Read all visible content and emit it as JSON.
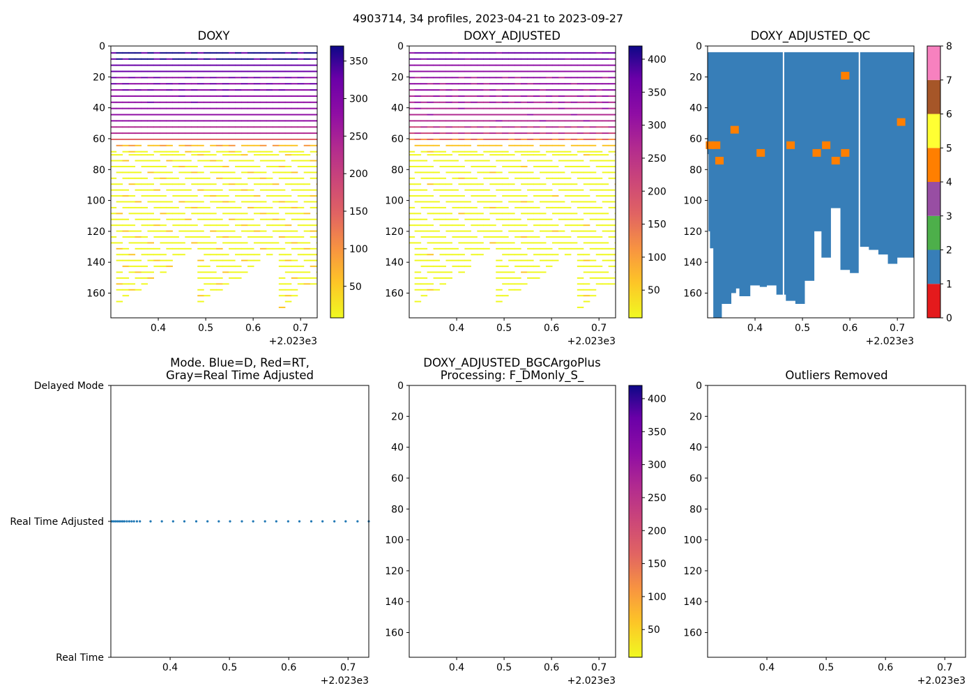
{
  "figure": {
    "suptitle": "4903714, 34 profiles, 2023-04-21 to 2023-09-27"
  },
  "colors": {
    "qc_good": "#377eb8",
    "qc_bad": "#ff7f00",
    "mode_points": "#1f77b4",
    "qc_scale": [
      "#e41a1c",
      "#377eb8",
      "#4daf4a",
      "#984ea3",
      "#ff7f00",
      "#ffff33",
      "#a65628",
      "#f781bf",
      "#999999"
    ]
  },
  "chart_data": [
    {
      "id": "doxy",
      "type": "heatmap",
      "title": "DOXY",
      "xlim": [
        2023.3,
        2023.735
      ],
      "ylim": [
        176,
        0
      ],
      "xticks": [
        "0.4",
        "0.5",
        "0.6",
        "0.7"
      ],
      "xtick_values": [
        2023.4,
        2023.5,
        2023.6,
        2023.7
      ],
      "x_offset_label": "+2.023e3",
      "yticks": [
        "0",
        "20",
        "40",
        "60",
        "80",
        "100",
        "120",
        "140",
        "160"
      ],
      "ytick_values": [
        0,
        20,
        40,
        60,
        80,
        100,
        120,
        140,
        160
      ],
      "colorbar": {
        "range": [
          8,
          370
        ],
        "ticks": [
          "50",
          "100",
          "150",
          "200",
          "250",
          "300",
          "350"
        ],
        "tick_values": [
          50,
          100,
          150,
          200,
          250,
          300,
          350
        ],
        "colormap": "plasma_r"
      },
      "profile_time_range": [
        2023.305,
        2023.74
      ],
      "n_profiles": 34
    },
    {
      "id": "doxy_adjusted",
      "type": "heatmap",
      "title": "DOXY_ADJUSTED",
      "xlim": [
        2023.3,
        2023.735
      ],
      "ylim": [
        176,
        0
      ],
      "xticks": [
        "0.4",
        "0.5",
        "0.6",
        "0.7"
      ],
      "xtick_values": [
        2023.4,
        2023.5,
        2023.6,
        2023.7
      ],
      "x_offset_label": "+2.023e3",
      "yticks": [
        "0",
        "20",
        "40",
        "60",
        "80",
        "100",
        "120",
        "140",
        "160"
      ],
      "ytick_values": [
        0,
        20,
        40,
        60,
        80,
        100,
        120,
        140,
        160
      ],
      "colorbar": {
        "range": [
          8,
          420
        ],
        "ticks": [
          "50",
          "100",
          "150",
          "200",
          "250",
          "300",
          "350",
          "400"
        ],
        "tick_values": [
          50,
          100,
          150,
          200,
          250,
          300,
          350,
          400
        ],
        "colormap": "plasma_r"
      },
      "profile_time_range": [
        2023.305,
        2023.74
      ],
      "n_profiles": 34
    },
    {
      "id": "doxy_adjusted_qc",
      "type": "heatmap",
      "title": "DOXY_ADJUSTED_QC",
      "xlim": [
        2023.3,
        2023.735
      ],
      "ylim": [
        176,
        0
      ],
      "xticks": [
        "0.4",
        "0.5",
        "0.6",
        "0.7"
      ],
      "xtick_values": [
        2023.4,
        2023.5,
        2023.6,
        2023.7
      ],
      "x_offset_label": "+2.023e3",
      "yticks": [
        "0",
        "20",
        "40",
        "60",
        "80",
        "100",
        "120",
        "140",
        "160"
      ],
      "ytick_values": [
        0,
        20,
        40,
        60,
        80,
        100,
        120,
        140,
        160
      ],
      "colorbar": {
        "range": [
          0,
          8
        ],
        "ticks": [
          "0",
          "1",
          "2",
          "3",
          "4",
          "5",
          "6",
          "7",
          "8"
        ],
        "tick_values": [
          0,
          1,
          2,
          3,
          4,
          5,
          6,
          7,
          8
        ],
        "colormap": "qc_discrete"
      },
      "qc_top_depth": 4,
      "qc_bottom_depth": [
        [
          2023.3,
          70
        ],
        [
          2023.302,
          120
        ],
        [
          2023.305,
          131
        ],
        [
          2023.312,
          178
        ],
        [
          2023.33,
          167
        ],
        [
          2023.35,
          160
        ],
        [
          2023.36,
          157
        ],
        [
          2023.367,
          162
        ],
        [
          2023.39,
          155
        ],
        [
          2023.41,
          156
        ],
        [
          2023.425,
          155
        ],
        [
          2023.445,
          161
        ],
        [
          2023.465,
          165
        ],
        [
          2023.485,
          167
        ],
        [
          2023.505,
          152
        ],
        [
          2023.525,
          120
        ],
        [
          2023.54,
          137
        ],
        [
          2023.56,
          105
        ],
        [
          2023.58,
          145
        ],
        [
          2023.6,
          147
        ],
        [
          2023.62,
          130
        ],
        [
          2023.64,
          132
        ],
        [
          2023.66,
          135
        ],
        [
          2023.68,
          141
        ],
        [
          2023.7,
          137
        ],
        [
          2023.735,
          137
        ]
      ],
      "qc_gaps_x": [
        2023.46,
        2023.62
      ],
      "qc_flag4_points": [
        [
          2023.305,
          64
        ],
        [
          2023.318,
          64
        ],
        [
          2023.325,
          74
        ],
        [
          2023.357,
          54
        ],
        [
          2023.412,
          69
        ],
        [
          2023.475,
          64
        ],
        [
          2023.53,
          69
        ],
        [
          2023.55,
          64
        ],
        [
          2023.57,
          74
        ],
        [
          2023.59,
          69
        ],
        [
          2023.59,
          19
        ],
        [
          2023.708,
          49
        ]
      ]
    },
    {
      "id": "mode",
      "type": "scatter",
      "title": "Mode. Blue=D, Red=RT,",
      "title_line2": "Gray=Real Time Adjusted",
      "xlim": [
        2023.3,
        2023.735
      ],
      "ylim": [
        0,
        2
      ],
      "xticks": [
        "0.4",
        "0.5",
        "0.6",
        "0.7"
      ],
      "xtick_values": [
        2023.4,
        2023.5,
        2023.6,
        2023.7
      ],
      "x_offset_label": "+2.023e3",
      "ycat_labels": [
        "Real Time",
        "Real Time Adjusted",
        "Delayed Mode"
      ],
      "ycat_values": [
        0,
        1,
        2
      ],
      "points_x": [
        2023.302,
        2023.305,
        2023.308,
        2023.311,
        2023.314,
        2023.317,
        2023.32,
        2023.323,
        2023.327,
        2023.331,
        2023.335,
        2023.339,
        2023.344,
        2023.349,
        2023.367,
        2023.386,
        2023.405,
        2023.424,
        2023.444,
        2023.463,
        2023.482,
        2023.501,
        2023.521,
        2023.54,
        2023.56,
        2023.579,
        2023.599,
        2023.618,
        2023.638,
        2023.657,
        2023.677,
        2023.696,
        2023.716,
        2023.735
      ],
      "points_y": 1
    },
    {
      "id": "bgc_plus",
      "type": "heatmap",
      "title": "DOXY_ADJUSTED_BGCArgoPlus",
      "title_line2": "Processing: F_DMonly_S_",
      "xlim": [
        2023.3,
        2023.735
      ],
      "ylim": [
        176,
        0
      ],
      "xticks": [
        "0.4",
        "0.5",
        "0.6",
        "0.7"
      ],
      "xtick_values": [
        2023.4,
        2023.5,
        2023.6,
        2023.7
      ],
      "x_offset_label": "+2.023e3",
      "yticks": [
        "0",
        "20",
        "40",
        "60",
        "80",
        "100",
        "120",
        "140",
        "160"
      ],
      "ytick_values": [
        0,
        20,
        40,
        60,
        80,
        100,
        120,
        140,
        160
      ],
      "colorbar": {
        "range": [
          8,
          420
        ],
        "ticks": [
          "50",
          "100",
          "150",
          "200",
          "250",
          "300",
          "350",
          "400"
        ],
        "tick_values": [
          50,
          100,
          150,
          200,
          250,
          300,
          350,
          400
        ],
        "colormap": "plasma_r"
      }
    },
    {
      "id": "outliers",
      "type": "heatmap",
      "title": "Outliers Removed",
      "xlim": [
        2023.3,
        2023.735
      ],
      "ylim": [
        176,
        0
      ],
      "xticks": [
        "0.4",
        "0.5",
        "0.6",
        "0.7"
      ],
      "xtick_values": [
        2023.4,
        2023.5,
        2023.6,
        2023.7
      ],
      "x_offset_label": "+2.023e3",
      "yticks": [
        "0",
        "20",
        "40",
        "60",
        "80",
        "100",
        "120",
        "140",
        "160"
      ],
      "ytick_values": [
        0,
        20,
        40,
        60,
        80,
        100,
        120,
        140,
        160
      ]
    }
  ]
}
